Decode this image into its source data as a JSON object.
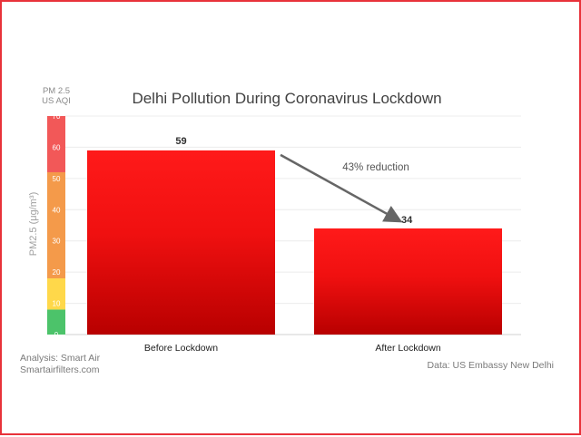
{
  "chart_data": {
    "type": "bar",
    "title": "Delhi Pollution During Coronavirus Lockdown",
    "ylabel": "PM2.5 (μg/m³)",
    "aqi_header": [
      "PM 2.5",
      "US AQI"
    ],
    "categories": [
      "Before Lockdown",
      "After Lockdown"
    ],
    "values": [
      59,
      34
    ],
    "value_labels": [
      "59",
      "34"
    ],
    "ylim": [
      0,
      70
    ],
    "yticks": [
      0,
      10,
      20,
      30,
      40,
      50,
      60,
      70
    ],
    "ytick_labels": [
      "0",
      "10",
      "20",
      "30",
      "40",
      "50",
      "60",
      "70"
    ],
    "grid": true,
    "aqi_bands": [
      {
        "from": 0,
        "to": 8,
        "color": "#4cc36a"
      },
      {
        "from": 8,
        "to": 18,
        "color": "#ffd84a"
      },
      {
        "from": 18,
        "to": 52,
        "color": "#f49a4a"
      },
      {
        "from": 52,
        "to": 70,
        "color": "#f25858"
      }
    ],
    "bar_colors": {
      "top": "#ff1a1a",
      "bottom": "#b80000"
    },
    "annotation": {
      "text": "43% reduction",
      "from_category": 0,
      "to_category": 1
    },
    "credit_left": [
      "Analysis: Smart Air",
      "Smartairfilters.com"
    ],
    "credit_right": "Data: US Embassy New Delhi"
  }
}
